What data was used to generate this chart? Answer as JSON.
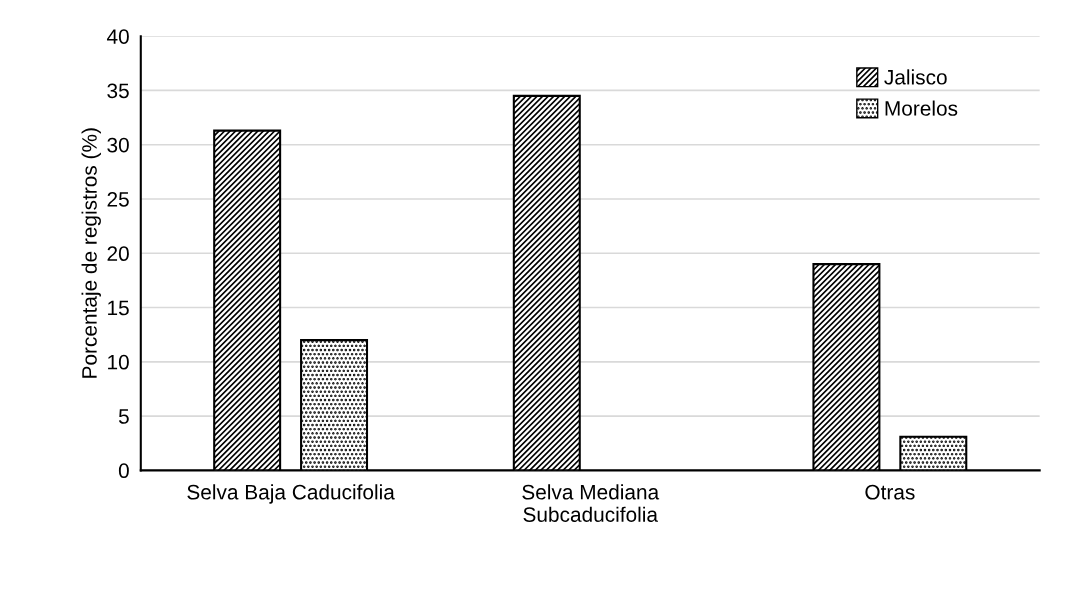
{
  "chart_data": {
    "type": "bar",
    "ylabel": "Porcentaje de registros (%)",
    "categories": [
      "Selva Baja Caducifolia",
      "Selva Mediana\nSubcaducifolia",
      "Otras"
    ],
    "series": [
      {
        "name": "Jalisco",
        "color": "#000000",
        "values": [
          31.3,
          34.5,
          19.0
        ]
      },
      {
        "name": "Morelos",
        "color": "#000000",
        "values": [
          12.0,
          null,
          3.1
        ]
      }
    ],
    "ylim": [
      0,
      40
    ],
    "yticks": [
      0,
      5,
      10,
      15,
      20,
      25,
      30,
      35,
      40
    ],
    "grid": "y",
    "legend": "top right"
  }
}
